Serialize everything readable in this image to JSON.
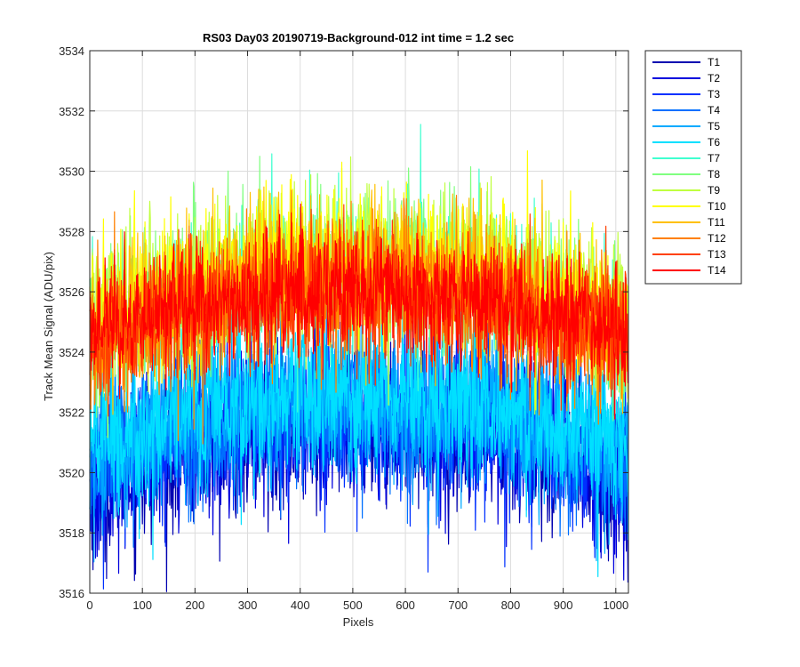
{
  "chart_data": {
    "type": "line",
    "title": "RS03 Day03 20190719-Background-012 int time = 1.2 sec",
    "xlabel": "Pixels",
    "ylabel": "Track Mean Signal (ADU/pix)",
    "xlim": [
      0,
      1024
    ],
    "ylim": [
      3516,
      3534
    ],
    "xticks": [
      0,
      100,
      200,
      300,
      400,
      500,
      600,
      700,
      800,
      900,
      1000
    ],
    "yticks": [
      3516,
      3518,
      3520,
      3522,
      3524,
      3526,
      3528,
      3530,
      3532,
      3534
    ],
    "grid": true,
    "legend_position": "outside-top-right",
    "num_pixels": 1024,
    "series": [
      {
        "name": "T1",
        "color": "#0000B0",
        "center_mean": 3521.6,
        "edge_mean": 3519.5,
        "noise": 1.3
      },
      {
        "name": "T2",
        "color": "#0000DD",
        "center_mean": 3521.8,
        "edge_mean": 3519.7,
        "noise": 1.3
      },
      {
        "name": "T3",
        "color": "#0030FF",
        "center_mean": 3522.0,
        "edge_mean": 3520.0,
        "noise": 1.3
      },
      {
        "name": "T4",
        "color": "#0070FF",
        "center_mean": 3522.2,
        "edge_mean": 3520.3,
        "noise": 1.3
      },
      {
        "name": "T5",
        "color": "#00AAFF",
        "center_mean": 3522.4,
        "edge_mean": 3520.6,
        "noise": 1.3
      },
      {
        "name": "T6",
        "color": "#00E0FF",
        "center_mean": 3522.7,
        "edge_mean": 3521.0,
        "noise": 1.3
      },
      {
        "name": "T7",
        "color": "#40FFD0",
        "center_mean": 3526.8,
        "edge_mean": 3524.4,
        "noise": 1.2
      },
      {
        "name": "T8",
        "color": "#80FF80",
        "center_mean": 3527.0,
        "edge_mean": 3524.6,
        "noise": 1.2
      },
      {
        "name": "T9",
        "color": "#C0FF40",
        "center_mean": 3527.2,
        "edge_mean": 3524.8,
        "noise": 1.2
      },
      {
        "name": "T10",
        "color": "#FFFF00",
        "center_mean": 3527.0,
        "edge_mean": 3525.0,
        "noise": 1.2
      },
      {
        "name": "T11",
        "color": "#FFC000",
        "center_mean": 3526.6,
        "edge_mean": 3524.6,
        "noise": 1.2
      },
      {
        "name": "T12",
        "color": "#FF8000",
        "center_mean": 3526.2,
        "edge_mean": 3524.3,
        "noise": 1.2
      },
      {
        "name": "T13",
        "color": "#FF4000",
        "center_mean": 3526.0,
        "edge_mean": 3524.2,
        "noise": 1.1
      },
      {
        "name": "T14",
        "color": "#FF0000",
        "center_mean": 3526.0,
        "edge_mean": 3524.6,
        "noise": 1.0
      }
    ]
  }
}
